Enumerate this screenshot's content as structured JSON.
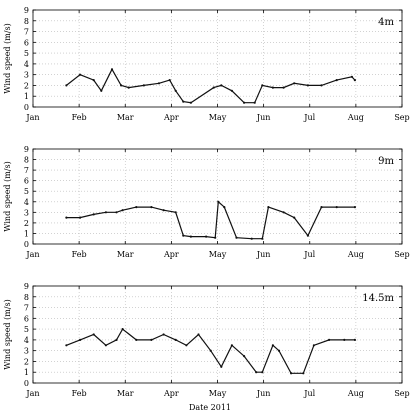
{
  "xlabel": "Date 2011",
  "chart_data": [
    {
      "type": "line",
      "title": "4m",
      "ylabel": "Wind speed (m/s)",
      "xlabel": "",
      "ylim": [
        0,
        9
      ],
      "xlim": [
        "2011-01-01",
        "2011-09-01"
      ],
      "yticks": [
        "0",
        "1",
        "2",
        "3",
        "4",
        "5",
        "6",
        "7",
        "8",
        "9"
      ],
      "xticks": [
        "Jan",
        "Feb",
        "Mar",
        "Apr",
        "May",
        "Jun",
        "Jul",
        "Aug",
        "Sep"
      ],
      "grid": true,
      "series": [
        {
          "x": [
            "2011-01-23",
            "2011-02-01",
            "2011-02-10",
            "2011-02-15",
            "2011-02-22",
            "2011-02-28",
            "2011-03-05",
            "2011-03-15",
            "2011-03-25",
            "2011-04-01",
            "2011-04-05",
            "2011-04-10",
            "2011-04-15",
            "2011-04-30",
            "2011-05-05",
            "2011-05-12",
            "2011-05-20",
            "2011-05-27",
            "2011-06-01",
            "2011-06-08",
            "2011-06-15",
            "2011-06-22",
            "2011-07-01",
            "2011-07-10",
            "2011-07-20",
            "2011-07-30",
            "2011-08-01"
          ],
          "y": [
            2.0,
            3.0,
            2.5,
            1.5,
            3.5,
            2.0,
            1.8,
            2.0,
            2.2,
            2.5,
            1.5,
            0.5,
            0.4,
            1.8,
            2.0,
            1.5,
            0.4,
            0.4,
            2.0,
            1.8,
            1.8,
            2.2,
            2.0,
            2.0,
            2.5,
            2.8,
            2.5
          ]
        }
      ]
    },
    {
      "type": "line",
      "title": "9m",
      "ylabel": "Wind speed (m/s)",
      "xlabel": "",
      "ylim": [
        0,
        9
      ],
      "xlim": [
        "2011-01-01",
        "2011-09-01"
      ],
      "yticks": [
        "0",
        "1",
        "2",
        "3",
        "4",
        "5",
        "6",
        "7",
        "8",
        "9"
      ],
      "xticks": [
        "Jan",
        "Feb",
        "Mar",
        "Apr",
        "May",
        "Jun",
        "Jul",
        "Aug",
        "Sep"
      ],
      "grid": true,
      "series": [
        {
          "x": [
            "2011-01-23",
            "2011-02-01",
            "2011-02-10",
            "2011-02-18",
            "2011-02-25",
            "2011-03-01",
            "2011-03-10",
            "2011-03-20",
            "2011-03-28",
            "2011-04-05",
            "2011-04-10",
            "2011-04-15",
            "2011-04-25",
            "2011-05-01",
            "2011-05-03",
            "2011-05-07",
            "2011-05-15",
            "2011-05-25",
            "2011-06-01",
            "2011-06-05",
            "2011-06-15",
            "2011-06-22",
            "2011-07-01",
            "2011-07-10",
            "2011-07-20",
            "2011-08-01"
          ],
          "y": [
            2.5,
            2.5,
            2.8,
            3.0,
            3.0,
            3.2,
            3.5,
            3.5,
            3.2,
            3.0,
            0.8,
            0.7,
            0.7,
            0.6,
            4.0,
            3.5,
            0.6,
            0.5,
            0.5,
            3.5,
            3.0,
            2.5,
            0.8,
            3.5,
            3.5,
            3.5
          ]
        }
      ]
    },
    {
      "type": "line",
      "title": "14.5m",
      "ylabel": "Wind speed (m/s)",
      "xlabel": "",
      "ylim": [
        0,
        9
      ],
      "xlim": [
        "2011-01-01",
        "2011-09-01"
      ],
      "yticks": [
        "0",
        "1",
        "2",
        "3",
        "4",
        "5",
        "6",
        "7",
        "8",
        "9"
      ],
      "xticks": [
        "Jan",
        "Feb",
        "Mar",
        "Apr",
        "May",
        "Jun",
        "Jul",
        "Aug",
        "Sep"
      ],
      "grid": true,
      "series": [
        {
          "x": [
            "2011-01-23",
            "2011-02-01",
            "2011-02-10",
            "2011-02-18",
            "2011-02-25",
            "2011-03-01",
            "2011-03-10",
            "2011-03-20",
            "2011-03-28",
            "2011-04-05",
            "2011-04-12",
            "2011-04-20",
            "2011-04-28",
            "2011-05-05",
            "2011-05-12",
            "2011-05-20",
            "2011-05-28",
            "2011-06-01",
            "2011-06-08",
            "2011-06-12",
            "2011-06-20",
            "2011-06-28",
            "2011-07-05",
            "2011-07-15",
            "2011-07-25",
            "2011-08-01"
          ],
          "y": [
            3.5,
            4.0,
            4.5,
            3.5,
            4.0,
            5.0,
            4.0,
            4.0,
            4.5,
            4.0,
            3.5,
            4.5,
            3.0,
            1.5,
            3.5,
            2.5,
            1.0,
            1.0,
            3.5,
            3.0,
            0.9,
            0.9,
            3.5,
            4.0,
            4.0,
            4.0
          ]
        }
      ]
    }
  ]
}
